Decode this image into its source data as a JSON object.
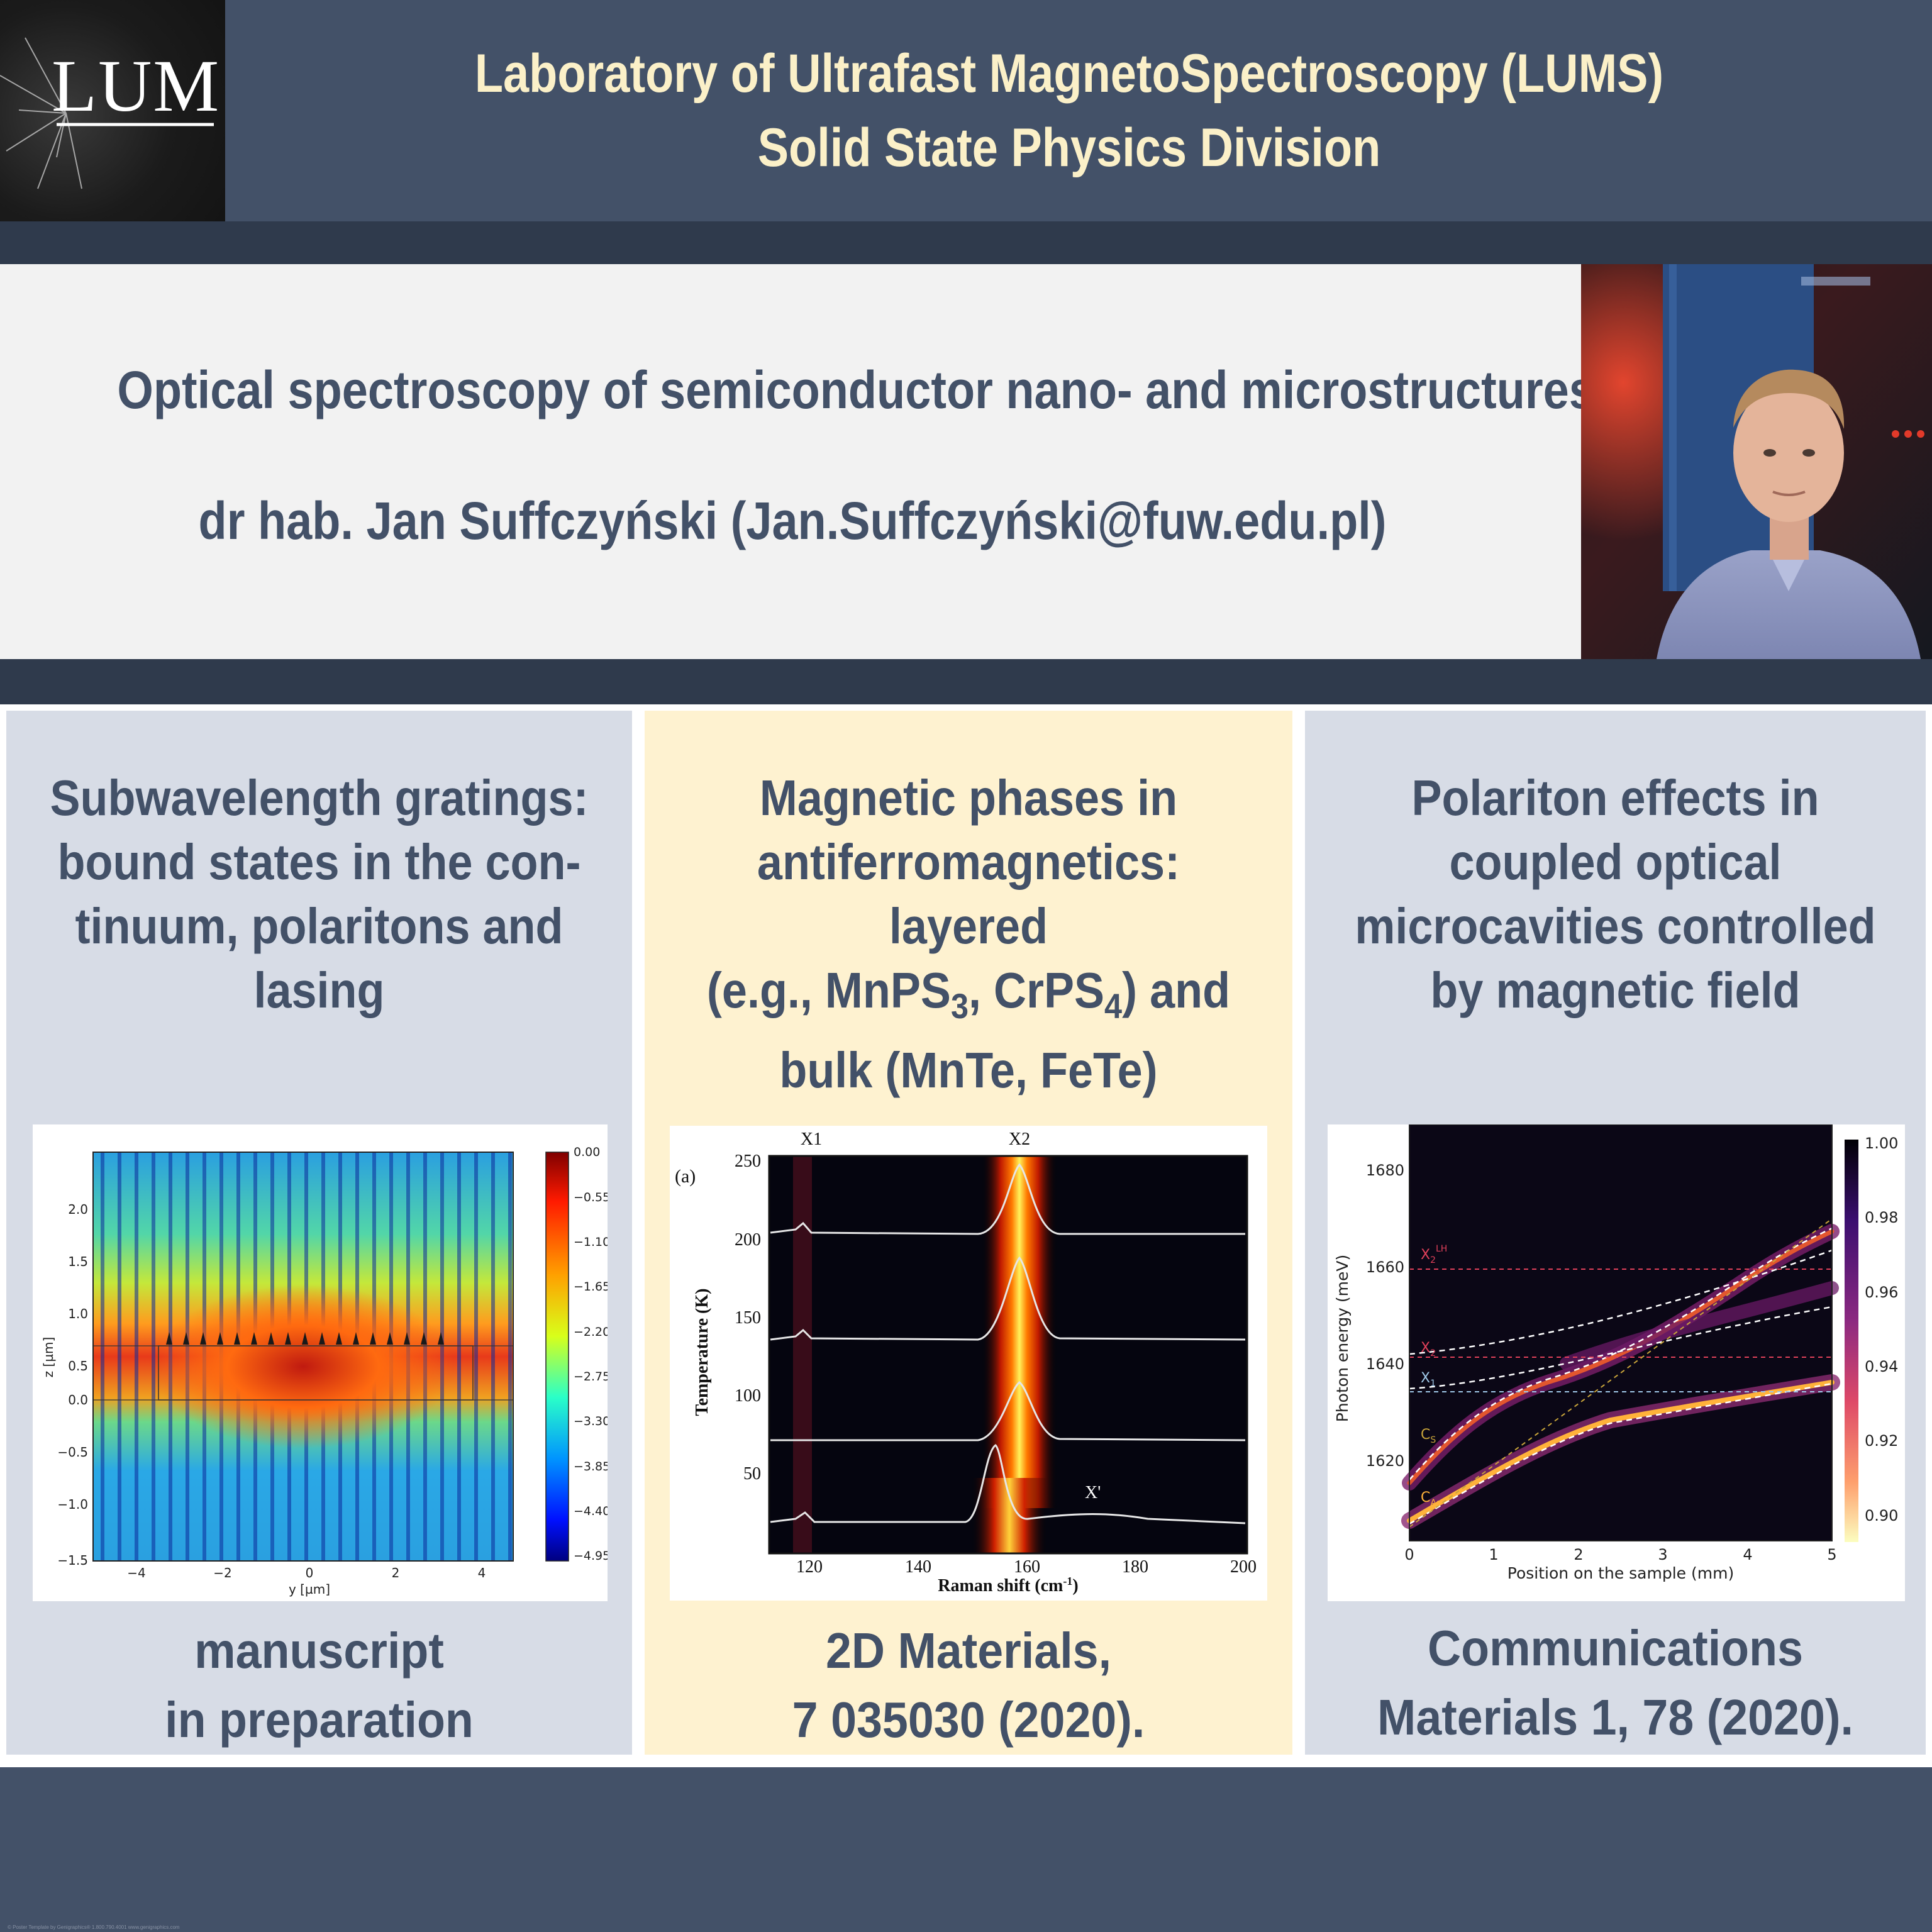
{
  "header": {
    "logo_text": "LUMS",
    "title_line1": "Laboratory of Ultrafast MagnetoSpectroscopy (LUMS)",
    "title_line2": "Solid State Physics Division"
  },
  "intro": {
    "subtitle": "Optical spectroscopy of semiconductor  nano- and  microstructures",
    "author": "dr hab. Jan Suffczyński   (Jan.Suffczyński@fuw.edu.pl)"
  },
  "panels": [
    {
      "title_lines": [
        "Subwavelength gratings:",
        "bound  states in the con-",
        "tinuum, polaritons and",
        "lasing"
      ],
      "footer_lines": [
        "manuscript",
        "in preparation"
      ],
      "figure": {
        "ylabel": "z [µm]",
        "xlabel": "y [µm]",
        "yticks": [
          "2.0",
          "1.5",
          "1.0",
          "0.5",
          "0.0",
          "−0.5",
          "−1.0",
          "−1.5"
        ],
        "xticks": [
          "−4",
          "−2",
          "0",
          "2",
          "4"
        ],
        "colorbar": [
          "0.00",
          "−0.55",
          "−1.10",
          "−1.65",
          "−2.20",
          "−2.75",
          "−3.30",
          "−3.85",
          "−4.40",
          "−4.95"
        ]
      }
    },
    {
      "title_lines": [
        "Magnetic phases in",
        "antiferromagnetics: layered",
        "(e.g., MnPS",
        "3",
        ", CrPS",
        "4",
        ") and",
        "bulk (MnTe, FeTe)"
      ],
      "footer_lines": [
        "2D Materials,",
        "7 035030 (2020)."
      ],
      "figure": {
        "panel_label": "(a)",
        "ylabel": "Temperature (K)",
        "xlabel": "Raman shift (cm",
        "xlabel_sup": "-1",
        "xlabel_close": ")",
        "yticks": [
          "250",
          "200",
          "150",
          "100",
          "50"
        ],
        "xticks": [
          "120",
          "140",
          "160",
          "180",
          "200"
        ],
        "peaks": [
          "X1",
          "X2",
          "X'"
        ]
      }
    },
    {
      "title_lines": [
        "Polariton effects in",
        "coupled optical",
        "microcavities controlled",
        "by magnetic field"
      ],
      "footer_lines": [
        "Communications",
        "Materials 1, 78 (2020)."
      ],
      "figure": {
        "ylabel": "Photon energy (meV)",
        "xlabel": "Position on the sample (mm)",
        "yticks": [
          "1680",
          "1660",
          "1640",
          "1620"
        ],
        "xticks": [
          "0",
          "1",
          "2",
          "3",
          "4",
          "5"
        ],
        "colorbar": [
          "1.00",
          "0.98",
          "0.96",
          "0.94",
          "0.92",
          "0.90"
        ],
        "labels": [
          "X",
          "2",
          "LH",
          "X",
          "2",
          "X",
          "1",
          "C",
          "S",
          "C",
          "As"
        ]
      }
    }
  ],
  "footer": {
    "credit": "© Poster Template by Genigraphics® 1.800.790.4001 www.genigraphics.com"
  },
  "colors": {
    "navy": "#435168",
    "dark_band": "#2f3a4c",
    "cream_title": "#fbf0c8",
    "panel_grey": "#d7dce6",
    "panel_cream": "#fef2d0"
  }
}
